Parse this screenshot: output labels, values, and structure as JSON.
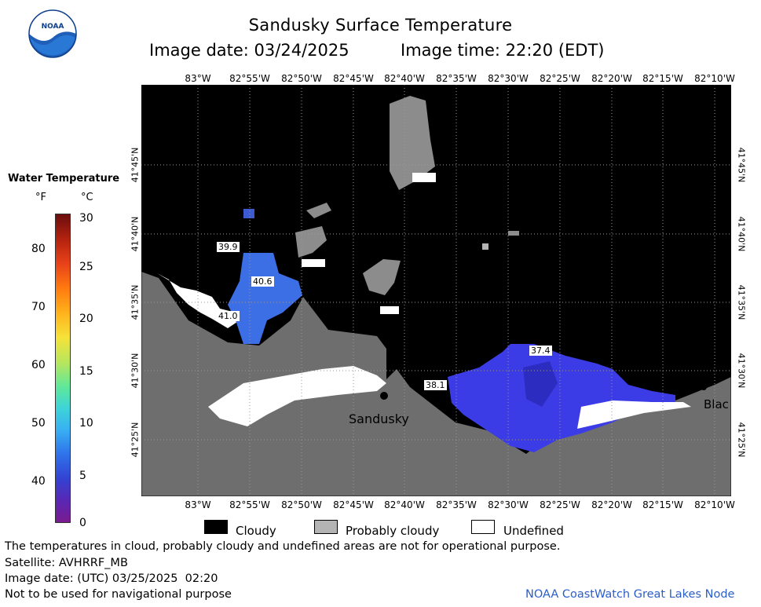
{
  "header": {
    "title": "Sandusky Surface Temperature",
    "date_label": "Image date: 03/24/2025",
    "time_label": "Image time: 22:20 (EDT)",
    "logo_text": "NOAA"
  },
  "map": {
    "lon_ticks": [
      "83°W",
      "82°55'W",
      "82°50'W",
      "82°45'W",
      "82°40'W",
      "82°35'W",
      "82°30'W",
      "82°25'W",
      "82°20'W",
      "82°15'W",
      "82°10'W"
    ],
    "lat_ticks": [
      "41°45'N",
      "41°40'N",
      "41°35'N",
      "41°30'N",
      "41°25'N"
    ],
    "place_labels": {
      "city": "Sandusky",
      "partial": "Blac"
    },
    "temperature_labels": [
      "39.9",
      "40.6",
      "41.0",
      "37.4",
      "38.1"
    ],
    "colors": {
      "land": "#6e6e6e",
      "cloud": "#000000",
      "probably_cloudy": "#b4b4b4",
      "undefined": "#ffffff",
      "water_blue": "#3c3ce6"
    }
  },
  "colorbar": {
    "title": "Water Temperature",
    "unit_f": "°F",
    "unit_c": "°C",
    "f_ticks": [
      "80",
      "70",
      "60",
      "50",
      "40"
    ],
    "c_ticks": [
      "30",
      "25",
      "20",
      "15",
      "10",
      "5",
      "0"
    ]
  },
  "legend": {
    "cloudy": "Cloudy",
    "probably_cloudy": "Probably cloudy",
    "undefined": "Undefined"
  },
  "footer": {
    "disclaimer": "The temperatures in cloud, probably cloudy and undefined areas are not for operational purpose.",
    "satellite": "Satellite: AVHRRF_MB",
    "utc_date": "Image date: (UTC) 03/25/2025  02:20",
    "nav_warning": "Not to be used for navigational purpose",
    "credit": "NOAA CoastWatch Great Lakes Node"
  }
}
